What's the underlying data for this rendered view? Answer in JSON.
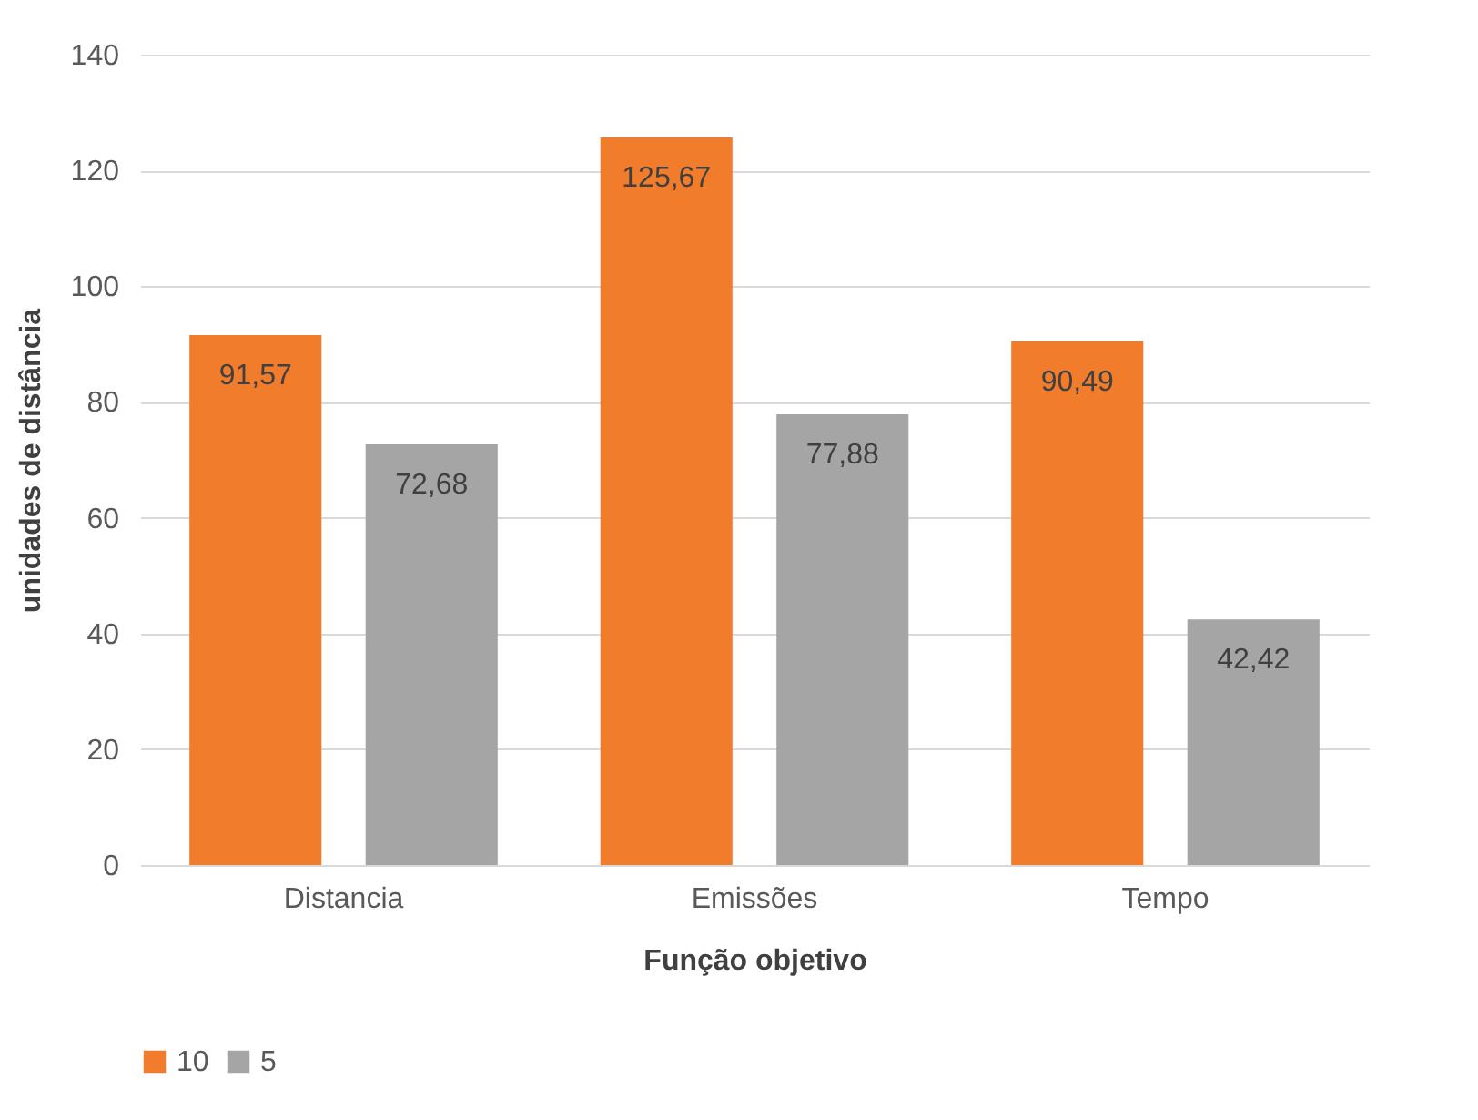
{
  "chart_data": {
    "type": "bar",
    "xlabel": "Função objetivo",
    "ylabel": "unidades de distância",
    "categories": [
      "Distancia",
      "Emissões",
      "Tempo"
    ],
    "series": [
      {
        "name": "10",
        "color": "#f07c2c",
        "values": [
          91.57,
          125.67,
          90.49
        ],
        "value_labels": [
          "91,57",
          "125,67",
          "90,49"
        ]
      },
      {
        "name": "5",
        "color": "#a5a5a5",
        "values": [
          72.68,
          77.88,
          42.42
        ],
        "value_labels": [
          "72,68",
          "77,88",
          "42,42"
        ]
      }
    ],
    "ylim": [
      0,
      140
    ],
    "yticks": [
      0,
      20,
      40,
      60,
      80,
      100,
      120,
      140
    ],
    "grid": "y",
    "legend": "bottom"
  }
}
